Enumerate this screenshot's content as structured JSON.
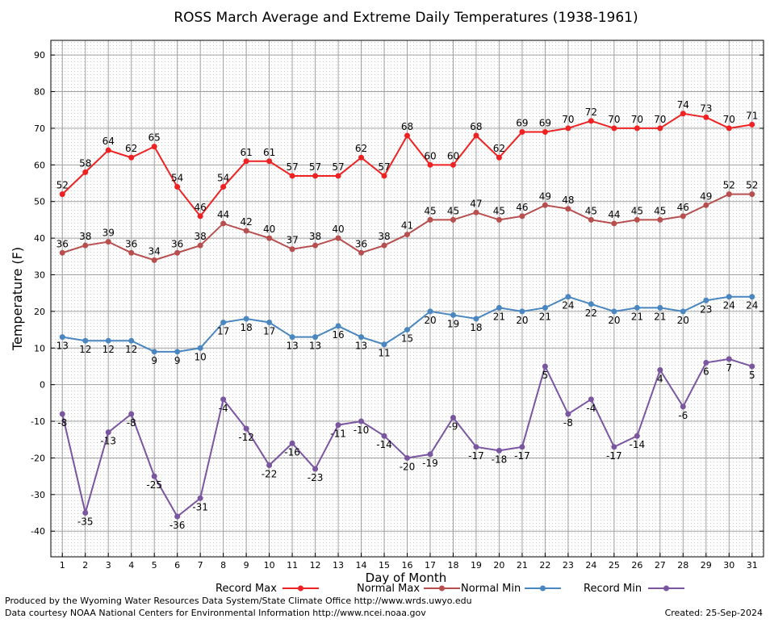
{
  "chart_data": {
    "type": "line",
    "title": "ROSS March Average and Extreme Daily Temperatures (1938-1961)",
    "xlabel": "Day of Month",
    "ylabel": "Temperature (F)",
    "xlim": [
      0.5,
      31.5
    ],
    "ylim": [
      -47,
      94
    ],
    "y_ticks": [
      -40,
      -30,
      -20,
      -10,
      0,
      10,
      20,
      30,
      40,
      50,
      60,
      70,
      80,
      90
    ],
    "x": [
      1,
      2,
      3,
      4,
      5,
      6,
      7,
      8,
      9,
      10,
      11,
      12,
      13,
      14,
      15,
      16,
      17,
      18,
      19,
      20,
      21,
      22,
      23,
      24,
      25,
      26,
      27,
      28,
      29,
      30,
      31
    ],
    "grid": true,
    "legend_position": "bottom",
    "series": [
      {
        "name": "Record Max",
        "color": "#ee2222",
        "label_pos": "above",
        "values": [
          52,
          58,
          64,
          62,
          65,
          54,
          46,
          54,
          61,
          61,
          57,
          57,
          57,
          62,
          57,
          68,
          60,
          60,
          68,
          62,
          69,
          69,
          70,
          72,
          70,
          70,
          70,
          74,
          73,
          70,
          71
        ]
      },
      {
        "name": "Normal Max",
        "color": "#b84f4f",
        "label_pos": "above",
        "values": [
          36,
          38,
          39,
          36,
          34,
          36,
          38,
          44,
          42,
          40,
          37,
          38,
          40,
          36,
          38,
          41,
          45,
          45,
          47,
          45,
          46,
          49,
          48,
          45,
          44,
          45,
          45,
          46,
          49,
          52,
          52
        ]
      },
      {
        "name": "Normal Min",
        "color": "#4a86bf",
        "label_pos": "below",
        "values": [
          13,
          12,
          12,
          12,
          9,
          9,
          10,
          17,
          18,
          17,
          13,
          13,
          16,
          13,
          11,
          15,
          20,
          19,
          18,
          21,
          20,
          21,
          24,
          22,
          20,
          21,
          21,
          20,
          23,
          24,
          24
        ]
      },
      {
        "name": "Record Min",
        "color": "#7a55a0",
        "label_pos": "below",
        "values": [
          -8,
          -35,
          -13,
          -8,
          -25,
          -36,
          -31,
          -4,
          -12,
          -22,
          -16,
          -23,
          -11,
          -10,
          -14,
          -20,
          -19,
          -9,
          -17,
          -18,
          -17,
          5,
          -8,
          -4,
          -17,
          -14,
          4,
          -6,
          6,
          7,
          5
        ]
      }
    ]
  },
  "footer": {
    "produced_by": "Produced by the Wyoming Water Resources Data System/State Climate Office http://www.wrds.uwyo.edu",
    "courtesy": "Data courtesy NOAA National Centers for Environmental Information http://www.ncei.noaa.gov",
    "created": "Created:  25-Sep-2024"
  }
}
